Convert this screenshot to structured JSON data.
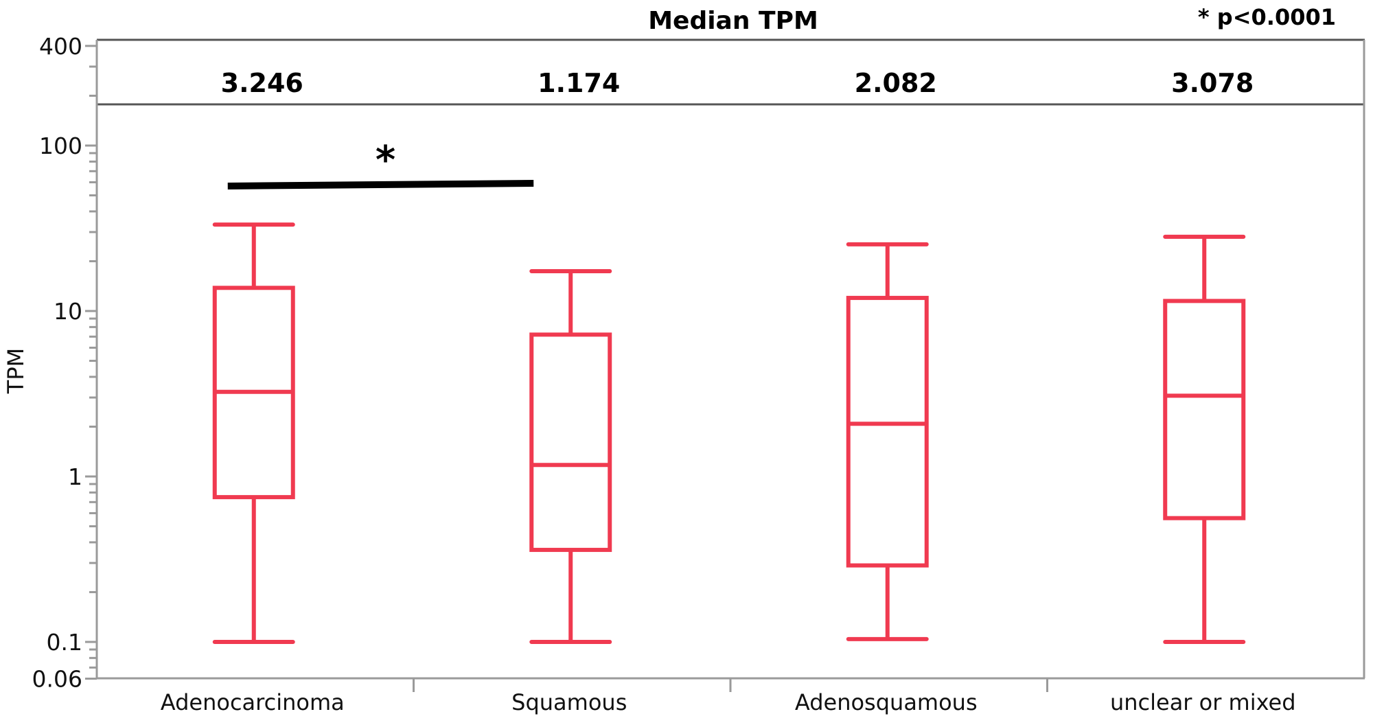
{
  "chart_data": {
    "type": "box",
    "title": "Median TPM",
    "annotation": "* p<0.0001",
    "xlabel": "",
    "ylabel": "TPM",
    "yscale": "log",
    "ylim": [
      0.06,
      400
    ],
    "yticks": [
      {
        "value": 400,
        "label": "400"
      },
      {
        "value": 100,
        "label": "100"
      },
      {
        "value": 10,
        "label": "10"
      },
      {
        "value": 1,
        "label": "1"
      },
      {
        "value": 0.1,
        "label": "0.1"
      },
      {
        "value": 0.06,
        "label": "0.06"
      }
    ],
    "grid": false,
    "box_color": "#f03a50",
    "categories": [
      "Adenocarcinoma",
      "Squamous",
      "Adenosquamous",
      "unclear or mixed"
    ],
    "median_labels": [
      "3.246",
      "1.174",
      "2.082",
      "3.078"
    ],
    "boxes": [
      {
        "category": "Adenocarcinoma",
        "whisker_low": 0.1,
        "q1": 0.75,
        "median": 3.246,
        "q3": 13.8,
        "whisker_high": 33.3
      },
      {
        "category": "Squamous",
        "whisker_low": 0.1,
        "q1": 0.36,
        "median": 1.174,
        "q3": 7.2,
        "whisker_high": 17.4
      },
      {
        "category": "Adenosquamous",
        "whisker_low": 0.104,
        "q1": 0.29,
        "median": 2.082,
        "q3": 12.0,
        "whisker_high": 25.3
      },
      {
        "category": "unclear or mixed",
        "whisker_low": 0.1,
        "q1": 0.56,
        "median": 3.078,
        "q3": 11.5,
        "whisker_high": 28.1
      }
    ],
    "significance": [
      {
        "from": "Adenocarcinoma",
        "to": "Squamous",
        "marker": "*"
      }
    ]
  }
}
